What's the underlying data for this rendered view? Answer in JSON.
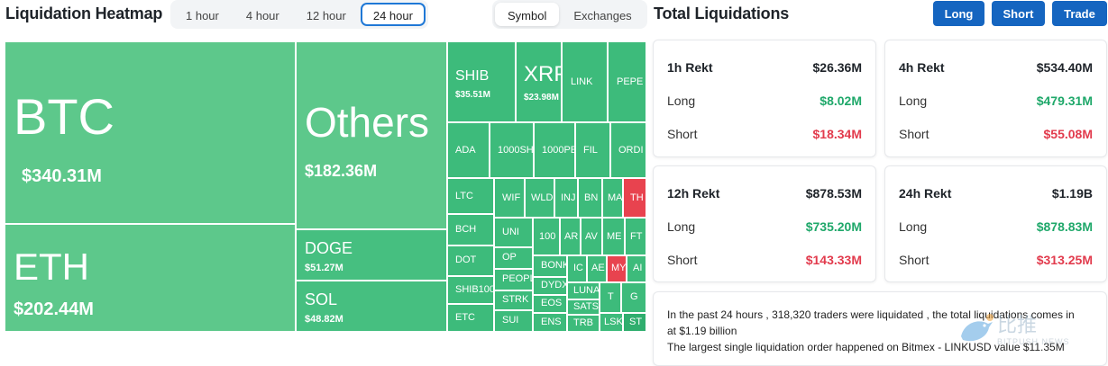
{
  "header": {
    "title": "Liquidation Heatmap",
    "time_tabs": [
      "1 hour",
      "4 hour",
      "12 hour",
      "24 hour"
    ],
    "active_time_tab": "24 hour",
    "view_tabs": [
      "Symbol",
      "Exchanges"
    ],
    "active_view_tab": "Symbol",
    "total_title": "Total Liquidations",
    "buttons": {
      "long": "Long",
      "short": "Short",
      "trade": "Trade"
    }
  },
  "heatmap": {
    "tiles": [
      {
        "symbol": "BTC",
        "value": "$340.31M"
      },
      {
        "symbol": "ETH",
        "value": "$202.44M"
      },
      {
        "symbol": "Others",
        "value": "$182.36M"
      },
      {
        "symbol": "DOGE",
        "value": "$51.27M"
      },
      {
        "symbol": "SOL",
        "value": "$48.82M"
      },
      {
        "symbol": "SHIB",
        "value": "$35.51M"
      },
      {
        "symbol": "XRP",
        "value": "$23.98M"
      },
      {
        "symbol": "LINK"
      },
      {
        "symbol": "PEPE"
      },
      {
        "symbol": "ADA"
      },
      {
        "symbol": "1000SH"
      },
      {
        "symbol": "1000PE"
      },
      {
        "symbol": "FIL"
      },
      {
        "symbol": "ORDI"
      },
      {
        "symbol": "LTC"
      },
      {
        "symbol": "WIF"
      },
      {
        "symbol": "WLD"
      },
      {
        "symbol": "INJ"
      },
      {
        "symbol": "BN"
      },
      {
        "symbol": "MA"
      },
      {
        "symbol": "TH"
      },
      {
        "symbol": "BCH"
      },
      {
        "symbol": "UNI"
      },
      {
        "symbol": "100"
      },
      {
        "symbol": "AR"
      },
      {
        "symbol": "AV"
      },
      {
        "symbol": "ME"
      },
      {
        "symbol": "FT"
      },
      {
        "symbol": "DOT"
      },
      {
        "symbol": "OP"
      },
      {
        "symbol": "BONK"
      },
      {
        "symbol": "IC"
      },
      {
        "symbol": "AE"
      },
      {
        "symbol": "MY"
      },
      {
        "symbol": "AI"
      },
      {
        "symbol": "SHIB100"
      },
      {
        "symbol": "PEOPL"
      },
      {
        "symbol": "DYDX"
      },
      {
        "symbol": "LUNA"
      },
      {
        "symbol": "STRK"
      },
      {
        "symbol": "EOS"
      },
      {
        "symbol": "SATS"
      },
      {
        "symbol": "T"
      },
      {
        "symbol": "G"
      },
      {
        "symbol": "ETC"
      },
      {
        "symbol": "SUI"
      },
      {
        "symbol": "ENS"
      },
      {
        "symbol": "TRB"
      },
      {
        "symbol": "LSK"
      },
      {
        "symbol": "ST"
      }
    ]
  },
  "cards": [
    {
      "title": "1h Rekt",
      "total": "$26.36M",
      "long_label": "Long",
      "long": "$8.02M",
      "short_label": "Short",
      "short": "$18.34M"
    },
    {
      "title": "4h Rekt",
      "total": "$534.40M",
      "long_label": "Long",
      "long": "$479.31M",
      "short_label": "Short",
      "short": "$55.08M"
    },
    {
      "title": "12h Rekt",
      "total": "$878.53M",
      "long_label": "Long",
      "long": "$735.20M",
      "short_label": "Short",
      "short": "$143.33M"
    },
    {
      "title": "24h Rekt",
      "total": "$1.19B",
      "long_label": "Long",
      "long": "$878.83M",
      "short_label": "Short",
      "short": "$313.25M"
    }
  ],
  "info": {
    "line1": "In the past 24 hours , 318,320 traders were liquidated , the total liquidations comes in",
    "line2": "at $1.19 billion",
    "line3": "The largest single liquidation order happened on Bitmex - LINKUSD value $11.35M"
  },
  "watermark": {
    "icon": "bird-logo-icon",
    "text": "比推",
    "sub": "BITPUSH NEWS"
  },
  "colors": {
    "tile_green": "#3dbb7b",
    "tile_green_light": "#5dc88b",
    "tile_red": "#e8434f",
    "long_green": "#1fa86a",
    "short_red": "#e23b4d",
    "button_blue": "#1565c0"
  }
}
